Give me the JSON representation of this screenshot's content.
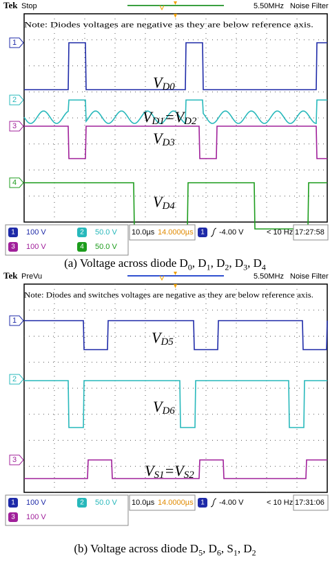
{
  "panels": [
    {
      "brand": "Tek",
      "status": "Stop",
      "rate": "5.50MHz",
      "filter": "Noise Filter",
      "note": "Note: Diodes voltages are negative as they are below reference axis.",
      "channels": [
        {
          "id": "1",
          "scale": "100 V"
        },
        {
          "id": "2",
          "scale": "50.0 V"
        },
        {
          "id": "3",
          "scale": "100 V"
        },
        {
          "id": "4",
          "scale": "50.0 V"
        }
      ],
      "labels": [
        [
          "V",
          "D0"
        ],
        [
          "V",
          "D1",
          "=V",
          "D2"
        ],
        [
          "V",
          "D3"
        ],
        [
          "V",
          "D4"
        ]
      ],
      "timebase": "10.0µs",
      "position": "14.0000µs",
      "trigger_channel": "1",
      "trigger_level": "-4.00 V",
      "trigger_freq": "< 10 Hz",
      "clock": "17:27:58",
      "caption": [
        "(a) Voltage across diode D",
        "0",
        ", D",
        "1",
        ", D",
        "2",
        ", D",
        "3",
        ", D",
        "4"
      ]
    },
    {
      "brand": "Tek",
      "status": "PreVu",
      "rate": "5.50MHz",
      "filter": "Noise Filter",
      "note": "Note: Diodes and switches voltages are negative as they are below reference axis.",
      "channels": [
        {
          "id": "1",
          "scale": "100 V"
        },
        {
          "id": "2",
          "scale": "50.0 V"
        },
        {
          "id": "3",
          "scale": "100 V"
        }
      ],
      "labels": [
        [
          "V",
          "D5"
        ],
        [
          "V",
          "D6"
        ],
        [
          "V",
          "S1",
          "=V",
          "S2"
        ]
      ],
      "timebase": "10.0µs",
      "position": "14.0000µs",
      "trigger_channel": "1",
      "trigger_level": "-4.00 V",
      "trigger_freq": "< 10 Hz",
      "clock": "17:31:06",
      "caption": [
        "(b) Voltage across diode D",
        "5",
        ", D",
        "6",
        ", S",
        "1",
        ", D",
        "2"
      ]
    }
  ]
}
